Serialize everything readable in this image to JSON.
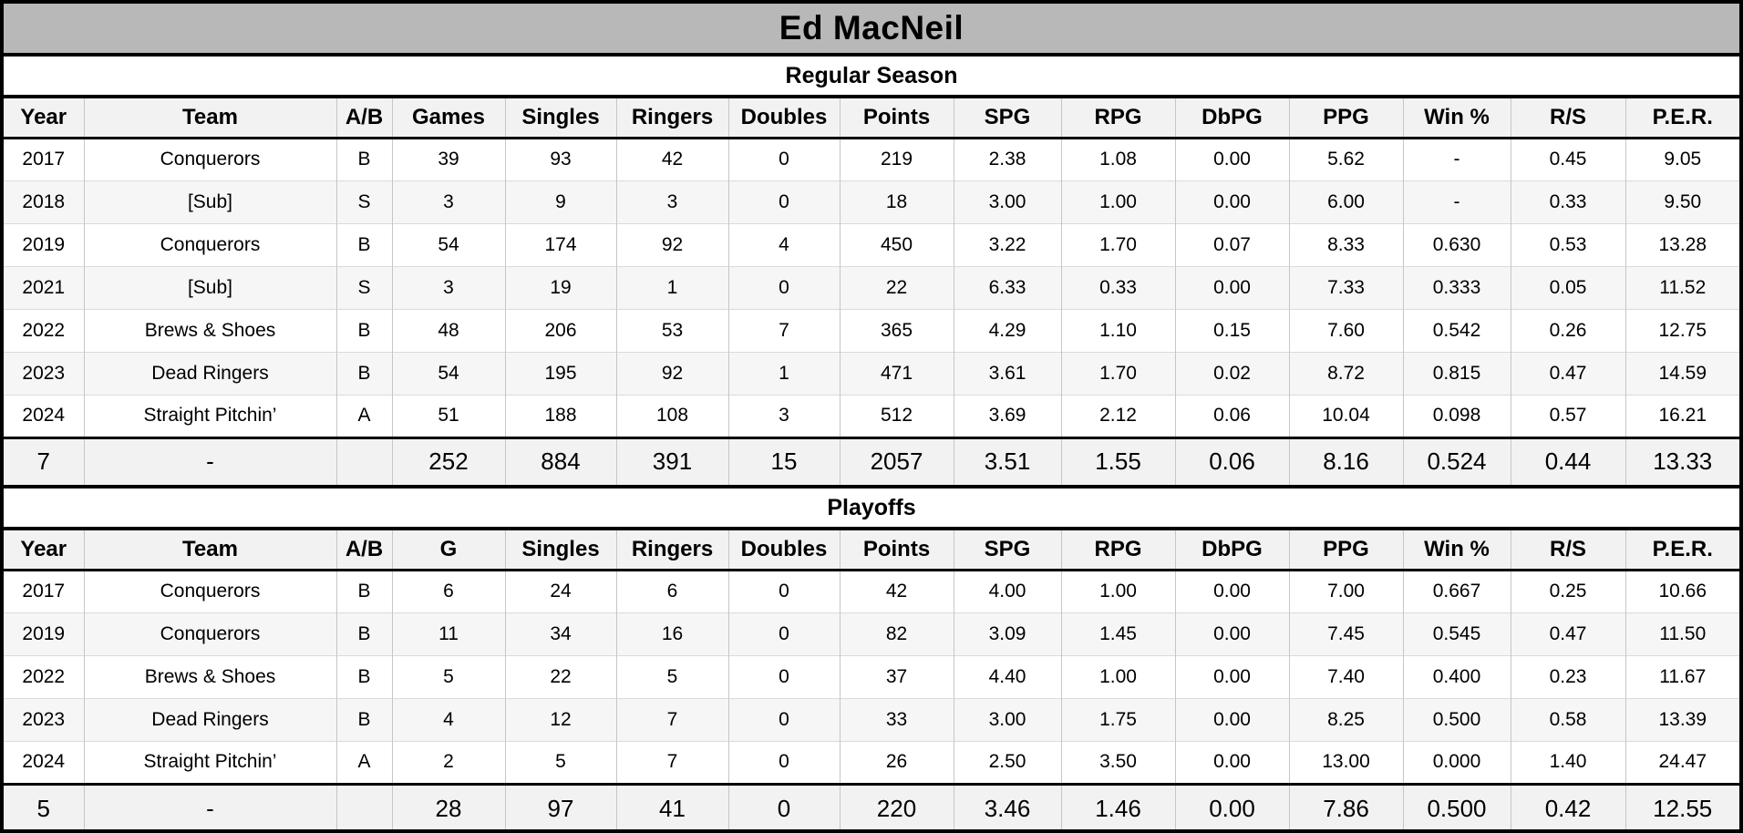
{
  "title": "Ed MacNeil",
  "colors": {
    "title_bar_bg": "#b8b8b8",
    "header_row_bg": "#f2f2f2",
    "stripe_row_bg": "#f6f6f6",
    "border_black": "#000000",
    "grid_line_gray": "#c6c6c6"
  },
  "sections": [
    {
      "title": "Regular Season",
      "columns": [
        "Year",
        "Team",
        "A/B",
        "Games",
        "Singles",
        "Ringers",
        "Doubles",
        "Points",
        "SPG",
        "RPG",
        "DbPG",
        "PPG",
        "Win %",
        "R/S",
        "P.E.R."
      ],
      "rows": [
        [
          "2017",
          "Conquerors",
          "B",
          "39",
          "93",
          "42",
          "0",
          "219",
          "2.38",
          "1.08",
          "0.00",
          "5.62",
          "-",
          "0.45",
          "9.05"
        ],
        [
          "2018",
          "[Sub]",
          "S",
          "3",
          "9",
          "3",
          "0",
          "18",
          "3.00",
          "1.00",
          "0.00",
          "6.00",
          "-",
          "0.33",
          "9.50"
        ],
        [
          "2019",
          "Conquerors",
          "B",
          "54",
          "174",
          "92",
          "4",
          "450",
          "3.22",
          "1.70",
          "0.07",
          "8.33",
          "0.630",
          "0.53",
          "13.28"
        ],
        [
          "2021",
          "[Sub]",
          "S",
          "3",
          "19",
          "1",
          "0",
          "22",
          "6.33",
          "0.33",
          "0.00",
          "7.33",
          "0.333",
          "0.05",
          "11.52"
        ],
        [
          "2022",
          "Brews & Shoes",
          "B",
          "48",
          "206",
          "53",
          "7",
          "365",
          "4.29",
          "1.10",
          "0.15",
          "7.60",
          "0.542",
          "0.26",
          "12.75"
        ],
        [
          "2023",
          "Dead Ringers",
          "B",
          "54",
          "195",
          "92",
          "1",
          "471",
          "3.61",
          "1.70",
          "0.02",
          "8.72",
          "0.815",
          "0.47",
          "14.59"
        ],
        [
          "2024",
          "Straight Pitchin’",
          "A",
          "51",
          "188",
          "108",
          "3",
          "512",
          "3.69",
          "2.12",
          "0.06",
          "10.04",
          "0.098",
          "0.57",
          "16.21"
        ]
      ],
      "totals": [
        "7",
        "-",
        "",
        "252",
        "884",
        "391",
        "15",
        "2057",
        "3.51",
        "1.55",
        "0.06",
        "8.16",
        "0.524",
        "0.44",
        "13.33"
      ]
    },
    {
      "title": "Playoffs",
      "columns": [
        "Year",
        "Team",
        "A/B",
        "G",
        "Singles",
        "Ringers",
        "Doubles",
        "Points",
        "SPG",
        "RPG",
        "DbPG",
        "PPG",
        "Win %",
        "R/S",
        "P.E.R."
      ],
      "rows": [
        [
          "2017",
          "Conquerors",
          "B",
          "6",
          "24",
          "6",
          "0",
          "42",
          "4.00",
          "1.00",
          "0.00",
          "7.00",
          "0.667",
          "0.25",
          "10.66"
        ],
        [
          "2019",
          "Conquerors",
          "B",
          "11",
          "34",
          "16",
          "0",
          "82",
          "3.09",
          "1.45",
          "0.00",
          "7.45",
          "0.545",
          "0.47",
          "11.50"
        ],
        [
          "2022",
          "Brews & Shoes",
          "B",
          "5",
          "22",
          "5",
          "0",
          "37",
          "4.40",
          "1.00",
          "0.00",
          "7.40",
          "0.400",
          "0.23",
          "11.67"
        ],
        [
          "2023",
          "Dead Ringers",
          "B",
          "4",
          "12",
          "7",
          "0",
          "33",
          "3.00",
          "1.75",
          "0.00",
          "8.25",
          "0.500",
          "0.58",
          "13.39"
        ],
        [
          "2024",
          "Straight Pitchin’",
          "A",
          "2",
          "5",
          "7",
          "0",
          "26",
          "2.50",
          "3.50",
          "0.00",
          "13.00",
          "0.000",
          "1.40",
          "24.47"
        ]
      ],
      "totals": [
        "5",
        "-",
        "",
        "28",
        "97",
        "41",
        "0",
        "220",
        "3.46",
        "1.46",
        "0.00",
        "7.86",
        "0.500",
        "0.42",
        "12.55"
      ]
    }
  ]
}
